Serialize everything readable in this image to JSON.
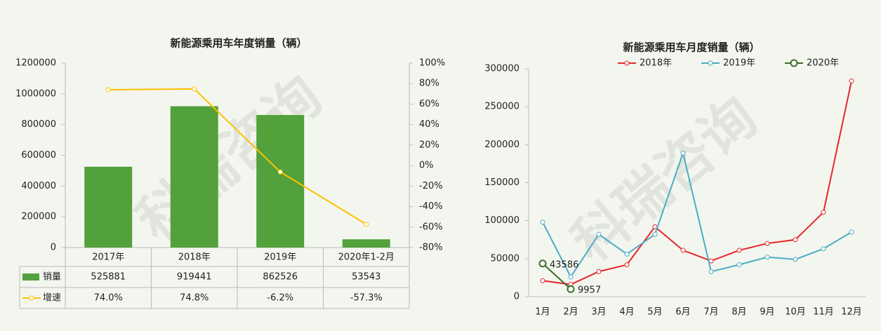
{
  "chart_data": [
    {
      "type": "bar",
      "title": "新能源乘用车年度销量（辆）",
      "watermark": "科瑞咨询",
      "categories": [
        "2017年",
        "2018年",
        "2019年",
        "2020年1-2月"
      ],
      "series": [
        {
          "name": "销量",
          "type": "bar",
          "color": "#52a13b",
          "values": [
            525881,
            919441,
            862526,
            53543
          ]
        },
        {
          "name": "增速",
          "type": "line",
          "axis": "y2",
          "color": "#ffc000",
          "values": [
            74.0,
            74.8,
            -6.2,
            -57.3
          ],
          "value_labels": [
            "74.0%",
            "74.8%",
            "-6.2%",
            "-57.3%"
          ]
        }
      ],
      "ylim": [
        0,
        1200000
      ],
      "yticks": [
        0,
        200000,
        400000,
        600000,
        800000,
        1000000,
        1200000
      ],
      "y2lim": [
        -80,
        100
      ],
      "y2ticks": [
        {
          "value": -80,
          "label": "-80%"
        },
        {
          "value": -60,
          "label": "-60%"
        },
        {
          "value": -40,
          "label": "-40%"
        },
        {
          "value": -20,
          "label": "-20%"
        },
        {
          "value": 0,
          "label": "0%"
        },
        {
          "value": 20,
          "label": "20%"
        },
        {
          "value": 40,
          "label": "40%"
        },
        {
          "value": 60,
          "label": "60%"
        },
        {
          "value": 80,
          "label": "80%"
        },
        {
          "value": 100,
          "label": "100%"
        }
      ],
      "grid": false
    },
    {
      "type": "line",
      "title": "新能源乘用车月度销量（辆）",
      "watermark": "科瑞咨询",
      "categories": [
        "1月",
        "2月",
        "3月",
        "4月",
        "5月",
        "6月",
        "7月",
        "8月",
        "9月",
        "10月",
        "11月",
        "12月"
      ],
      "series": [
        {
          "name": "2018年",
          "color": "#e8262d",
          "values": [
            21000,
            16000,
            33000,
            42000,
            92000,
            61000,
            47000,
            61000,
            70000,
            75000,
            111000,
            284000
          ]
        },
        {
          "name": "2019年",
          "color": "#4bacc6",
          "values": [
            98000,
            26000,
            82000,
            56000,
            82000,
            189000,
            33000,
            42000,
            52000,
            49000,
            63000,
            85000
          ]
        },
        {
          "name": "2020年",
          "color": "#3b6e2a",
          "data_labels": true,
          "values": [
            43586,
            9957,
            null,
            null,
            null,
            null,
            null,
            null,
            null,
            null,
            null,
            null
          ]
        }
      ],
      "ylim": [
        0,
        300000
      ],
      "yticks": [
        0,
        50000,
        100000,
        150000,
        200000,
        250000,
        300000
      ],
      "grid": false,
      "legend": "top"
    }
  ]
}
